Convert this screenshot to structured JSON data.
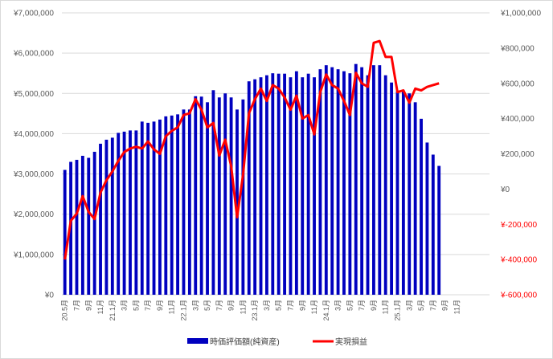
{
  "chart_data": {
    "type": "bar+line",
    "title": "",
    "xlabel": "",
    "ylabel": "",
    "x_tick_labels": [
      "20.5月",
      "7月",
      "9月",
      "11月",
      "21.1月",
      "3月",
      "5月",
      "7月",
      "9月",
      "11月",
      "22.1月",
      "3月",
      "5月",
      "7月",
      "9月",
      "11月",
      "23.1月",
      "3月",
      "5月",
      "7月",
      "9月",
      "11月",
      "24.1月",
      "3月",
      "5月",
      "7月",
      "9月",
      "11月",
      "25.1月",
      "3月",
      "5月",
      "7月",
      "9月",
      "11月"
    ],
    "y_left": {
      "min": 0,
      "max": 7000000,
      "step": 1000000,
      "tick_labels": [
        "¥0",
        "¥1,000,000",
        "¥2,000,000",
        "¥3,000,000",
        "¥4,000,000",
        "¥5,000,000",
        "¥6,000,000",
        "¥7,000,000"
      ]
    },
    "y_right": {
      "min": -600000,
      "max": 1000000,
      "step": 200000,
      "tick_labels": [
        "¥-600,000",
        "¥-400,000",
        "¥-200,000",
        "¥0",
        "¥200,000",
        "¥400,000",
        "¥600,000",
        "¥800,000",
        "¥1,000,000"
      ],
      "negative_color": "#ff0000",
      "positive_color": "#595959"
    },
    "grid": true,
    "legend_position": "bottom",
    "series": [
      {
        "name": "時価評価額(純資産)",
        "kind": "bar",
        "axis": "left",
        "color": "#0000bf",
        "values": [
          3100000,
          3300000,
          3350000,
          3450000,
          3400000,
          3550000,
          3750000,
          3850000,
          3900000,
          4020000,
          4050000,
          4080000,
          4080000,
          4300000,
          4270000,
          4300000,
          4350000,
          4430000,
          4450000,
          4480000,
          4600000,
          4600000,
          4930000,
          4920000,
          4780000,
          5080000,
          4900000,
          5000000,
          4900000,
          4600000,
          4850000,
          5300000,
          5350000,
          5400000,
          5450000,
          5500000,
          5490000,
          5490000,
          5400000,
          5550000,
          5400000,
          5490000,
          5400000,
          5600000,
          5700000,
          5650000,
          5600000,
          5550000,
          5500000,
          5730000,
          5650000,
          5450000,
          5700000,
          5700000,
          5450000,
          5270000,
          5050000,
          5070000,
          5000000,
          4780000,
          4370000,
          3780000,
          3480000,
          3200000
        ]
      },
      {
        "name": "実現損益",
        "kind": "line",
        "axis": "right",
        "color": "#ff0000",
        "values": [
          -400000,
          -180000,
          -140000,
          -40000,
          -130000,
          -170000,
          -20000,
          50000,
          100000,
          160000,
          210000,
          230000,
          240000,
          230000,
          270000,
          225000,
          200000,
          300000,
          330000,
          350000,
          420000,
          430000,
          510000,
          450000,
          350000,
          375000,
          190000,
          280000,
          130000,
          -160000,
          80000,
          430000,
          510000,
          570000,
          500000,
          590000,
          570000,
          520000,
          450000,
          530000,
          400000,
          420000,
          310000,
          550000,
          650000,
          590000,
          570000,
          500000,
          420000,
          660000,
          600000,
          580000,
          830000,
          840000,
          750000,
          750000,
          550000,
          560000,
          490000,
          570000,
          560000,
          580000,
          590000,
          600000
        ]
      }
    ]
  }
}
